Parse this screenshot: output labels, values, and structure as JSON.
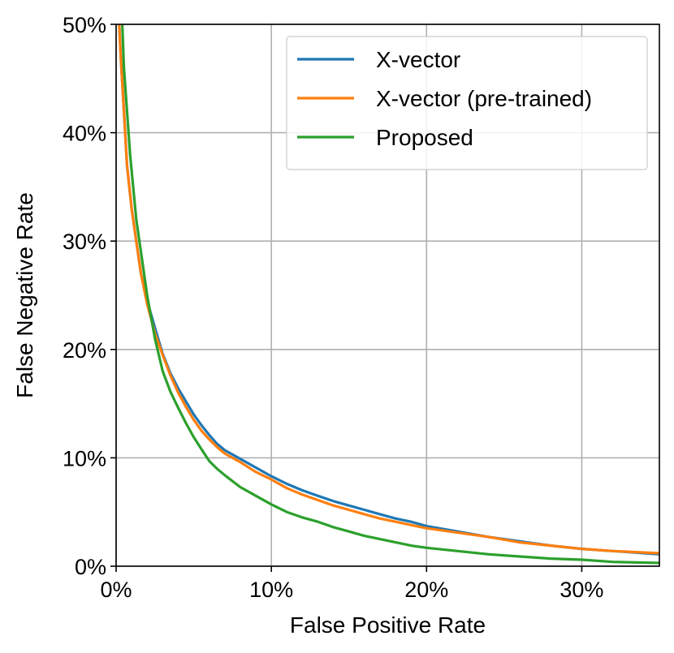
{
  "chart_data": {
    "type": "line",
    "title": "",
    "xlabel": "False Positive Rate",
    "ylabel": "False Negative Rate",
    "xlim": [
      0,
      0.35
    ],
    "ylim": [
      0,
      0.5
    ],
    "x_ticks": [
      0,
      0.1,
      0.2,
      0.3
    ],
    "x_tick_labels": [
      "0%",
      "10%",
      "20%",
      "30%"
    ],
    "y_ticks": [
      0,
      0.1,
      0.2,
      0.3,
      0.4,
      0.5
    ],
    "y_tick_labels": [
      "0%",
      "10%",
      "20%",
      "30%",
      "40%",
      "50%"
    ],
    "grid": true,
    "legend_position": "top-right",
    "series": [
      {
        "name": "X-vector",
        "color": "#1f77b4",
        "x": [
          0.002,
          0.003,
          0.005,
          0.007,
          0.01,
          0.013,
          0.016,
          0.02,
          0.025,
          0.03,
          0.035,
          0.04,
          0.045,
          0.05,
          0.055,
          0.06,
          0.065,
          0.07,
          0.08,
          0.09,
          0.1,
          0.11,
          0.12,
          0.13,
          0.14,
          0.15,
          0.16,
          0.17,
          0.18,
          0.19,
          0.2,
          0.22,
          0.24,
          0.26,
          0.28,
          0.3,
          0.32,
          0.35
        ],
        "y": [
          0.5,
          0.47,
          0.42,
          0.37,
          0.33,
          0.3,
          0.27,
          0.245,
          0.22,
          0.196,
          0.178,
          0.164,
          0.152,
          0.14,
          0.13,
          0.121,
          0.113,
          0.107,
          0.099,
          0.091,
          0.083,
          0.076,
          0.07,
          0.065,
          0.06,
          0.056,
          0.052,
          0.048,
          0.044,
          0.041,
          0.037,
          0.032,
          0.027,
          0.023,
          0.019,
          0.016,
          0.014,
          0.011
        ]
      },
      {
        "name": "X-vector (pre-trained)",
        "color": "#ff7f0e",
        "x": [
          0.002,
          0.003,
          0.005,
          0.007,
          0.01,
          0.013,
          0.016,
          0.02,
          0.025,
          0.03,
          0.035,
          0.04,
          0.045,
          0.05,
          0.055,
          0.06,
          0.065,
          0.07,
          0.08,
          0.09,
          0.1,
          0.11,
          0.12,
          0.13,
          0.14,
          0.15,
          0.16,
          0.17,
          0.18,
          0.19,
          0.2,
          0.22,
          0.24,
          0.26,
          0.28,
          0.3,
          0.32,
          0.35
        ],
        "y": [
          0.5,
          0.47,
          0.42,
          0.37,
          0.33,
          0.3,
          0.27,
          0.242,
          0.215,
          0.195,
          0.176,
          0.16,
          0.147,
          0.135,
          0.125,
          0.117,
          0.11,
          0.104,
          0.096,
          0.087,
          0.08,
          0.072,
          0.066,
          0.061,
          0.056,
          0.052,
          0.048,
          0.044,
          0.041,
          0.038,
          0.035,
          0.031,
          0.027,
          0.022,
          0.019,
          0.016,
          0.014,
          0.012
        ]
      },
      {
        "name": "Proposed",
        "color": "#2ca02c",
        "x": [
          0.004,
          0.005,
          0.007,
          0.009,
          0.011,
          0.013,
          0.016,
          0.02,
          0.025,
          0.03,
          0.035,
          0.04,
          0.045,
          0.05,
          0.055,
          0.06,
          0.065,
          0.07,
          0.08,
          0.09,
          0.1,
          0.11,
          0.12,
          0.13,
          0.14,
          0.15,
          0.16,
          0.17,
          0.18,
          0.19,
          0.2,
          0.22,
          0.24,
          0.26,
          0.28,
          0.3,
          0.32,
          0.35
        ],
        "y": [
          0.5,
          0.46,
          0.42,
          0.38,
          0.35,
          0.32,
          0.29,
          0.25,
          0.21,
          0.18,
          0.161,
          0.146,
          0.132,
          0.119,
          0.108,
          0.097,
          0.09,
          0.084,
          0.073,
          0.065,
          0.057,
          0.05,
          0.045,
          0.041,
          0.036,
          0.032,
          0.028,
          0.025,
          0.022,
          0.019,
          0.017,
          0.014,
          0.011,
          0.009,
          0.007,
          0.006,
          0.004,
          0.003
        ]
      }
    ]
  }
}
